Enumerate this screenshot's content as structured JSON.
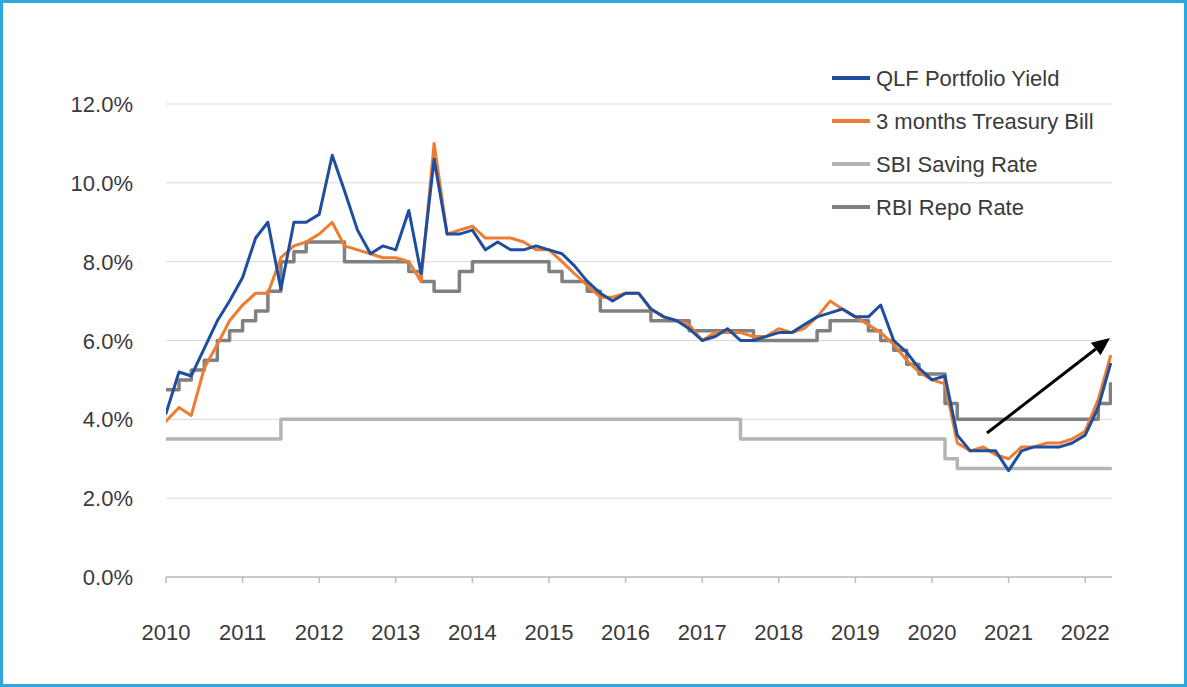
{
  "chart_data": {
    "type": "line",
    "x": [
      2010,
      2010.17,
      2010.33,
      2010.5,
      2010.67,
      2010.83,
      2011,
      2011.17,
      2011.33,
      2011.5,
      2011.67,
      2011.83,
      2012,
      2012.17,
      2012.33,
      2012.5,
      2012.67,
      2012.83,
      2013,
      2013.17,
      2013.33,
      2013.5,
      2013.67,
      2013.83,
      2014,
      2014.17,
      2014.33,
      2014.5,
      2014.67,
      2014.83,
      2015,
      2015.17,
      2015.33,
      2015.5,
      2015.67,
      2015.83,
      2016,
      2016.17,
      2016.33,
      2016.5,
      2016.67,
      2016.83,
      2017,
      2017.17,
      2017.33,
      2017.5,
      2017.67,
      2017.83,
      2018,
      2018.17,
      2018.33,
      2018.5,
      2018.67,
      2018.83,
      2019,
      2019.17,
      2019.33,
      2019.5,
      2019.67,
      2019.83,
      2020,
      2020.17,
      2020.33,
      2020.5,
      2020.67,
      2020.83,
      2021,
      2021.17,
      2021.33,
      2021.5,
      2021.67,
      2021.83,
      2022,
      2022.17,
      2022.33
    ],
    "series": [
      {
        "name": "QLF Portfolio Yield",
        "color": "#1f4e9e",
        "line_style": "solid",
        "values": [
          4.15,
          5.2,
          5.1,
          5.8,
          6.5,
          7.0,
          7.6,
          8.6,
          9.0,
          7.3,
          9.0,
          9.0,
          9.2,
          10.7,
          9.8,
          8.8,
          8.2,
          8.4,
          8.3,
          9.3,
          7.7,
          10.6,
          8.7,
          8.7,
          8.8,
          8.3,
          8.5,
          8.3,
          8.3,
          8.4,
          8.3,
          8.2,
          7.9,
          7.5,
          7.2,
          7.0,
          7.2,
          7.2,
          6.8,
          6.6,
          6.5,
          6.3,
          6.0,
          6.1,
          6.3,
          6.0,
          6.0,
          6.1,
          6.2,
          6.2,
          6.4,
          6.6,
          6.7,
          6.8,
          6.6,
          6.6,
          6.9,
          6.0,
          5.7,
          5.3,
          5.0,
          5.1,
          3.6,
          3.2,
          3.2,
          3.2,
          2.7,
          3.2,
          3.3,
          3.3,
          3.3,
          3.4,
          3.6,
          4.3,
          5.4
        ]
      },
      {
        "name": "3 months Treasury Bill",
        "color": "#ed7d31",
        "line_style": "solid",
        "values": [
          3.95,
          4.3,
          4.1,
          5.3,
          5.9,
          6.5,
          6.9,
          7.2,
          7.2,
          8.1,
          8.4,
          8.5,
          8.7,
          9.0,
          8.4,
          8.3,
          8.2,
          8.1,
          8.1,
          8.0,
          7.5,
          11.0,
          8.7,
          8.8,
          8.9,
          8.6,
          8.6,
          8.6,
          8.5,
          8.3,
          8.3,
          8.0,
          7.7,
          7.4,
          7.1,
          7.1,
          7.2,
          7.2,
          6.8,
          6.6,
          6.5,
          6.4,
          6.0,
          6.2,
          6.2,
          6.2,
          6.1,
          6.1,
          6.3,
          6.2,
          6.3,
          6.6,
          7.0,
          6.8,
          6.6,
          6.4,
          6.2,
          5.9,
          5.5,
          5.2,
          5.0,
          4.9,
          3.4,
          3.2,
          3.3,
          3.1,
          3.0,
          3.3,
          3.3,
          3.4,
          3.4,
          3.5,
          3.7,
          4.5,
          5.6
        ]
      },
      {
        "name": "SBI Saving Rate",
        "color": "#b4b4b4",
        "line_style": "step",
        "values": [
          3.5,
          3.5,
          3.5,
          3.5,
          3.5,
          3.5,
          3.5,
          3.5,
          3.5,
          4.0,
          4.0,
          4.0,
          4.0,
          4.0,
          4.0,
          4.0,
          4.0,
          4.0,
          4.0,
          4.0,
          4.0,
          4.0,
          4.0,
          4.0,
          4.0,
          4.0,
          4.0,
          4.0,
          4.0,
          4.0,
          4.0,
          4.0,
          4.0,
          4.0,
          4.0,
          4.0,
          4.0,
          4.0,
          4.0,
          4.0,
          4.0,
          4.0,
          4.0,
          4.0,
          4.0,
          3.5,
          3.5,
          3.5,
          3.5,
          3.5,
          3.5,
          3.5,
          3.5,
          3.5,
          3.5,
          3.5,
          3.5,
          3.5,
          3.5,
          3.5,
          3.5,
          3.0,
          2.75,
          2.75,
          2.75,
          2.75,
          2.75,
          2.75,
          2.75,
          2.75,
          2.75,
          2.75,
          2.75,
          2.75,
          2.75
        ]
      },
      {
        "name": "RBI Repo Rate",
        "color": "#808080",
        "line_style": "step",
        "values": [
          4.75,
          5.0,
          5.25,
          5.5,
          6.0,
          6.25,
          6.5,
          6.75,
          7.25,
          8.0,
          8.25,
          8.5,
          8.5,
          8.5,
          8.0,
          8.0,
          8.0,
          8.0,
          8.0,
          7.75,
          7.5,
          7.25,
          7.25,
          7.75,
          8.0,
          8.0,
          8.0,
          8.0,
          8.0,
          8.0,
          7.75,
          7.5,
          7.5,
          7.25,
          6.75,
          6.75,
          6.75,
          6.75,
          6.5,
          6.5,
          6.5,
          6.25,
          6.25,
          6.25,
          6.25,
          6.25,
          6.0,
          6.0,
          6.0,
          6.0,
          6.0,
          6.25,
          6.5,
          6.5,
          6.5,
          6.25,
          6.0,
          5.75,
          5.4,
          5.15,
          5.15,
          4.4,
          4.0,
          4.0,
          4.0,
          4.0,
          4.0,
          4.0,
          4.0,
          4.0,
          4.0,
          4.0,
          4.0,
          4.4,
          4.9
        ]
      }
    ],
    "xlim": [
      2010,
      2022.35
    ],
    "xticks": [
      2010,
      2011,
      2012,
      2013,
      2014,
      2015,
      2016,
      2017,
      2018,
      2019,
      2020,
      2021,
      2022
    ],
    "ylim": [
      0,
      12
    ],
    "yticks": [
      {
        "value": 0,
        "label": "0.0%"
      },
      {
        "value": 2,
        "label": "2.0%"
      },
      {
        "value": 4,
        "label": "4.0%"
      },
      {
        "value": 6,
        "label": "6.0%"
      },
      {
        "value": 8,
        "label": "8.0%"
      },
      {
        "value": 10,
        "label": "10.0%"
      },
      {
        "value": 12,
        "label": "12.0%"
      }
    ],
    "grid": true,
    "legend": "upper right"
  }
}
